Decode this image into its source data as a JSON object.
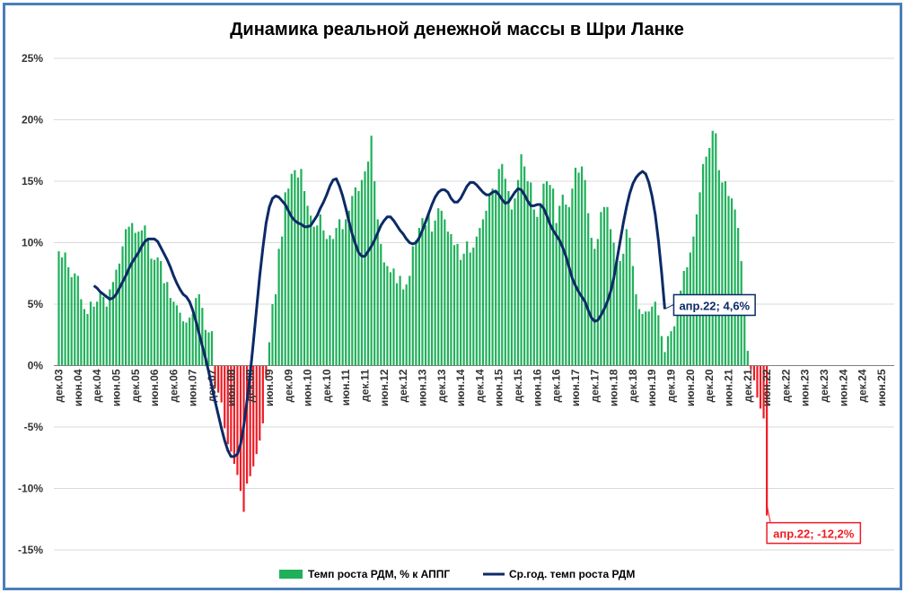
{
  "chart_data": {
    "type": "bar",
    "title": "Динамика реальной денежной массы в Шри Ланке",
    "ylim": [
      -15,
      25
    ],
    "yticks": [
      -15,
      -10,
      -5,
      0,
      5,
      10,
      15,
      20,
      25
    ],
    "ytick_labels": [
      "-15%",
      "-10%",
      "-5%",
      "0%",
      "5%",
      "10%",
      "15%",
      "20%",
      "25%"
    ],
    "grid": true,
    "legend_position": "bottom",
    "x_start": "2003-12",
    "x_end": "2025-06",
    "xtick_labels": [
      "дек.03",
      "июн.04",
      "дек.04",
      "июн.05",
      "дек.05",
      "июн.06",
      "дек.06",
      "июн.07",
      "дек.07",
      "июн.08",
      "дек.08",
      "июн.09",
      "дек.09",
      "июн.10",
      "дек.10",
      "июн.11",
      "дек.11",
      "июн.12",
      "дек.12",
      "июн.13",
      "дек.13",
      "июн.14",
      "дек.14",
      "июн.15",
      "дек.15",
      "июн.16",
      "дек.16",
      "июн.17",
      "дек.17",
      "июн.18",
      "дек.18",
      "июн.19",
      "дек.19",
      "июн.20",
      "дек.20",
      "июн.21",
      "дек.21",
      "июн.22",
      "дек.22",
      "июн.23",
      "дек.23",
      "июн.24",
      "дек.24",
      "июн.25"
    ],
    "series": [
      {
        "name": "Темп роста РДМ, % к АППГ",
        "kind": "bar",
        "color_positive": "#1fb05a",
        "color_negative": "#ee1c25",
        "values": [
          9.3,
          8.8,
          9.2,
          8.0,
          7.2,
          7.5,
          7.3,
          5.4,
          4.6,
          4.2,
          5.2,
          4.8,
          5.2,
          6.0,
          5.6,
          4.8,
          6.2,
          6.8,
          7.8,
          8.3,
          9.7,
          11.1,
          11.3,
          11.6,
          10.8,
          10.9,
          11.0,
          11.4,
          10.4,
          8.7,
          8.6,
          8.8,
          8.5,
          6.7,
          6.8,
          5.5,
          5.2,
          4.9,
          4.3,
          3.6,
          3.5,
          3.9,
          4.2,
          5.5,
          5.8,
          4.7,
          2.9,
          2.7,
          2.8,
          -1.8,
          -2.2,
          -3.0,
          -5.1,
          -6.4,
          -7.0,
          -8.0,
          -8.9,
          -10.2,
          -11.9,
          -9.6,
          -9.0,
          -8.2,
          -7.2,
          -6.1,
          -4.7,
          -1.0,
          1.9,
          5.0,
          5.8,
          9.5,
          10.5,
          14.1,
          14.4,
          15.6,
          15.9,
          15.3,
          16.0,
          14.2,
          13.0,
          12.2,
          11.3,
          11.4,
          12.3,
          11.0,
          10.3,
          10.6,
          10.3,
          11.2,
          11.9,
          11.1,
          11.9,
          12.6,
          13.8,
          14.5,
          14.2,
          15.1,
          15.8,
          16.6,
          18.7,
          15.0,
          11.9,
          9.9,
          8.4,
          8.1,
          7.6,
          7.9,
          6.7,
          7.3,
          6.2,
          6.6,
          7.3,
          9.7,
          10.2,
          11.2,
          12.0,
          11.4,
          12.5,
          10.9,
          11.8,
          12.8,
          12.6,
          11.9,
          10.9,
          10.7,
          9.8,
          9.9,
          8.6,
          9.1,
          10.1,
          9.2,
          9.6,
          10.5,
          11.2,
          11.9,
          12.6,
          13.9,
          14.4,
          14.1,
          16.0,
          16.4,
          15.2,
          14.2,
          12.7,
          13.6,
          15.1,
          17.2,
          16.2,
          15.0,
          14.9,
          12.7,
          12.1,
          13.2,
          14.8,
          15.0,
          14.7,
          14.4,
          11.6,
          13.0,
          13.9,
          13.1,
          12.9,
          14.4,
          16.1,
          15.7,
          16.2,
          15.1,
          12.4,
          10.4,
          9.5,
          10.3,
          12.5,
          12.9,
          12.9,
          11.1,
          10.0,
          8.8,
          8.5,
          9.1,
          11.1,
          10.4,
          8.1,
          5.8,
          4.6,
          4.2,
          4.4,
          4.4,
          4.8,
          5.2,
          4.1,
          2.4,
          1.1,
          2.4,
          2.8,
          3.2,
          4.2,
          6.1,
          7.7,
          8.0,
          9.2,
          10.5,
          12.3,
          14.1,
          16.4,
          17.0,
          17.7,
          19.1,
          18.9,
          15.9,
          14.9,
          15.0,
          13.8,
          13.6,
          12.7,
          11.2,
          8.5,
          4.7,
          1.2,
          -0.3,
          -1.2,
          -2.6,
          -3.5,
          -4.3,
          -12.2
        ]
      },
      {
        "name": "Ср.год. темп роста РДМ",
        "kind": "line",
        "color": "#0c2a66",
        "start": "2004-11",
        "values": [
          6.5,
          6.3,
          6.0,
          5.8,
          5.6,
          5.4,
          5.5,
          5.8,
          6.3,
          6.8,
          7.3,
          7.9,
          8.4,
          8.8,
          9.2,
          9.7,
          10.1,
          10.3,
          10.3,
          10.3,
          10.1,
          9.6,
          9.1,
          8.6,
          8.0,
          7.3,
          6.7,
          6.2,
          5.8,
          5.6,
          5.2,
          4.5,
          3.6,
          2.6,
          1.6,
          0.6,
          -0.5,
          -1.7,
          -2.9,
          -4.0,
          -5.1,
          -6.1,
          -6.9,
          -7.4,
          -7.4,
          -7.2,
          -6.4,
          -4.9,
          -2.9,
          -0.7,
          1.9,
          4.6,
          7.3,
          9.6,
          11.6,
          12.9,
          13.6,
          13.8,
          13.7,
          13.4,
          13.1,
          12.6,
          12.1,
          11.8,
          11.6,
          11.5,
          11.3,
          11.3,
          11.4,
          11.8,
          12.2,
          12.8,
          13.3,
          13.9,
          14.6,
          15.1,
          15.2,
          14.6,
          13.8,
          12.8,
          11.7,
          10.7,
          9.9,
          9.2,
          8.9,
          8.9,
          9.3,
          9.7,
          10.2,
          10.8,
          11.4,
          11.8,
          12.1,
          12.1,
          11.8,
          11.4,
          11.0,
          10.7,
          10.3,
          10.0,
          9.9,
          10.0,
          10.4,
          11.0,
          11.7,
          12.4,
          13.1,
          13.7,
          14.1,
          14.3,
          14.3,
          14.1,
          13.6,
          13.3,
          13.3,
          13.6,
          14.1,
          14.6,
          14.9,
          14.9,
          14.7,
          14.4,
          14.1,
          13.9,
          13.9,
          14.1,
          14.2,
          13.9,
          13.5,
          13.2,
          13.3,
          13.7,
          14.1,
          14.4,
          14.3,
          13.9,
          13.4,
          13.0,
          13.0,
          13.1,
          13.1,
          12.8,
          12.2,
          11.5,
          11.0,
          10.6,
          10.2,
          9.6,
          8.9,
          8.0,
          7.1,
          6.5,
          6.0,
          5.6,
          5.2,
          4.5,
          3.9,
          3.6,
          3.7,
          4.1,
          4.6,
          5.2,
          6.0,
          7.1,
          8.6,
          10.1,
          11.6,
          12.9,
          14.0,
          14.8,
          15.3,
          15.6,
          15.8,
          15.6,
          14.9,
          13.8,
          12.3,
          10.2,
          7.6,
          4.6
        ]
      }
    ]
  },
  "legend": {
    "bar_label": "Темп роста РДМ, % к АППГ",
    "line_label": "Ср.год. темп роста РДМ"
  },
  "callouts": {
    "line_last": "апр.22; 4,6%",
    "bar_last": "апр.22; -12,2%"
  }
}
